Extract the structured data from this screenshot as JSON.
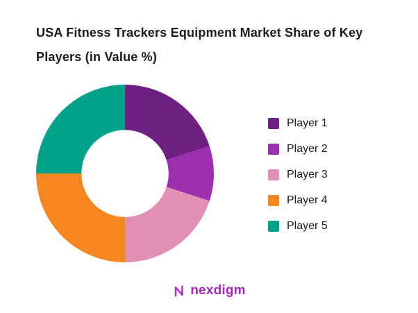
{
  "title": "USA Fitness Trackers Equipment Market Share of Key Players (in Value %)",
  "chart_data": {
    "type": "pie",
    "subtype": "donut",
    "title": "USA Fitness Trackers Equipment Market Share of Key Players (in Value %)",
    "unit": "percent of value",
    "series": [
      {
        "name": "Player 1",
        "value": 20,
        "color": "#6F2183"
      },
      {
        "name": "Player 2",
        "value": 10,
        "color": "#9B2FAF"
      },
      {
        "name": "Player 3",
        "value": 20,
        "color": "#E18FB5"
      },
      {
        "name": "Player 4",
        "value": 25,
        "color": "#F6861F"
      },
      {
        "name": "Player 5",
        "value": 25,
        "color": "#00A38A"
      }
    ],
    "start_angle_deg": 0,
    "direction": "clockwise",
    "inner_radius_ratio": 0.49,
    "legend_position": "right",
    "data_labels": false,
    "grid": false
  },
  "footer": {
    "logo_text": "nexdigm",
    "logo_color": "#A228B5",
    "logo_icon_color": "#B136C8"
  }
}
